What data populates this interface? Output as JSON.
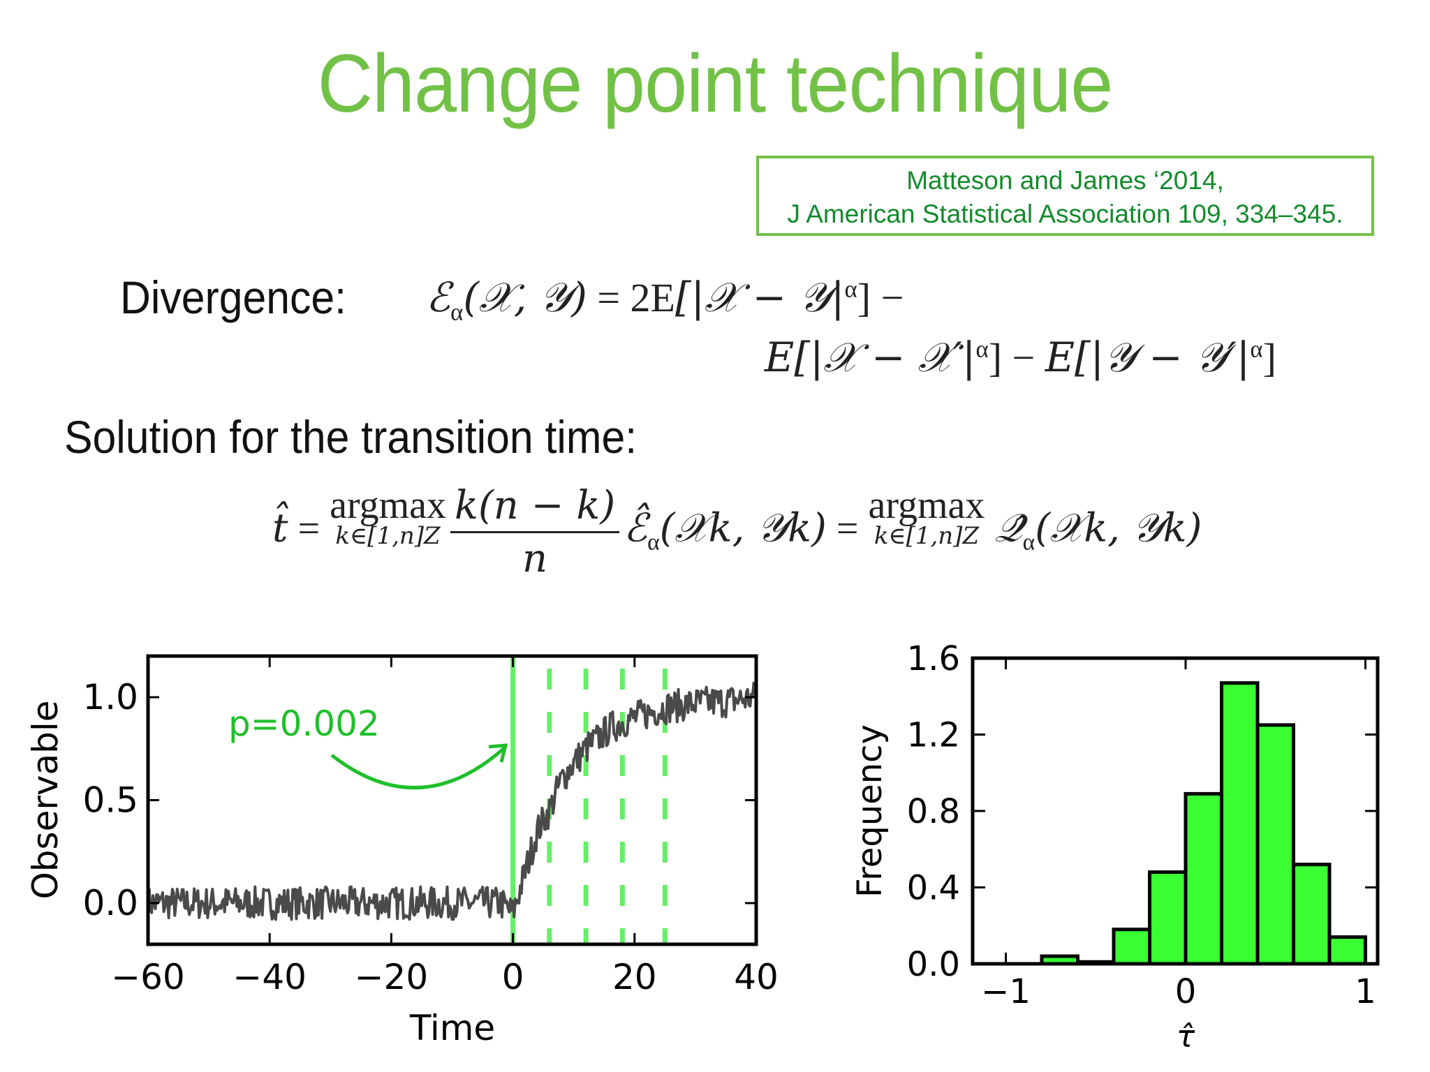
{
  "slide": {
    "title": "Change point technique",
    "title_color": "#72c147",
    "citation": {
      "line1": "Matteson and James ‘2014,",
      "line2": "J American Statistical Association 109, 334–345.",
      "text_color": "#138a2b",
      "border_color": "#72c147"
    },
    "divergence_label": "Divergence:",
    "divergence_formula": {
      "line1": "ℰα(ℳ, 𝒴) = 2E[|𝒳 − 𝒴|^α] −",
      "line2": "E[|𝒳 − 𝒳′|^α] − E[|𝒴 − 𝒴′|^α]",
      "lhs": "ℰ",
      "sub_alpha": "α",
      "args": "(𝒳, 𝒴)",
      "eq_2E": " = 2E",
      "t1": "[|𝒳 − 𝒴|",
      "sup": "α",
      "close_minus": "] −",
      "t2": "E[|𝒳 − 𝒳′|",
      "t2_close": "] − ",
      "t3": "E[|𝒴 − 𝒴′|",
      "t3_close": "]"
    },
    "solution_label": "Solution for the transition time:",
    "solution_formula": {
      "that": "t̂",
      "eq": " = ",
      "argmax": "argmax",
      "under": "k∈[1,n]Z",
      "num": "k(n − k)",
      "den": "n",
      "ehat": "ℰ̂",
      "alpha": "α",
      "args": "(𝒳k, 𝒴k)",
      "eq2": " = ",
      "argmax2": "argmax",
      "under2": "k∈[1,n]Z",
      "qhat": "𝒬̂",
      "alpha2": "α",
      "args2": "(𝒳k, 𝒴k)"
    }
  },
  "chart_data": [
    {
      "type": "line",
      "title": "",
      "xlabel": "Time",
      "ylabel": "Observable",
      "xlim": [
        -60,
        40
      ],
      "ylim": [
        -0.2,
        1.2
      ],
      "xticks": [
        "−60",
        "−40",
        "−20",
        "0",
        "20",
        "40"
      ],
      "yticks": [
        "0.0",
        "0.5",
        "1.0"
      ],
      "grid": false,
      "series": [
        {
          "name": "observable",
          "color": "#4a4a4a",
          "description": "noisy signal ~0 for t<0, rises sigmoid-like from t=0 to plateau ~0.97 by t≈25",
          "x": [
            -60,
            -50,
            -40,
            -30,
            -20,
            -10,
            -2,
            0,
            2,
            4,
            6,
            8,
            10,
            12,
            14,
            16,
            18,
            20,
            25,
            30,
            35,
            40
          ],
          "y": [
            0.0,
            0.0,
            0.0,
            0.0,
            0.0,
            0.0,
            0.0,
            -0.05,
            0.15,
            0.35,
            0.45,
            0.6,
            0.68,
            0.75,
            0.8,
            0.85,
            0.88,
            0.9,
            0.95,
            0.97,
            0.98,
            1.0
          ]
        }
      ],
      "vlines": [
        {
          "x": 0,
          "style": "solid",
          "color": "#66ee66"
        },
        {
          "x": 6,
          "style": "dashed",
          "color": "#66ee66"
        },
        {
          "x": 12,
          "style": "dashed",
          "color": "#66ee66"
        },
        {
          "x": 18,
          "style": "dashed",
          "color": "#66ee66"
        },
        {
          "x": 25,
          "style": "dashed",
          "color": "#66ee66"
        }
      ],
      "annotations": [
        {
          "text": "p=0.002",
          "color": "#1fbf2a",
          "arrow_to_x": 0,
          "arrow_to_y": 0.78
        }
      ]
    },
    {
      "type": "bar",
      "title": "",
      "xlabel": "τ̂",
      "ylabel": "Frequency",
      "xlim": [
        -1.2,
        1.05
      ],
      "ylim": [
        0.0,
        1.6
      ],
      "xticks": [
        "−1",
        "0",
        "1"
      ],
      "yticks": [
        "0.0",
        "0.4",
        "0.8",
        "1.2",
        "1.6"
      ],
      "grid": false,
      "bar_color": "#39ff33",
      "edge_color": "#000000",
      "bin_edges": [
        -0.8,
        -0.6,
        -0.4,
        -0.2,
        0.0,
        0.2,
        0.4,
        0.6,
        0.8,
        1.0
      ],
      "categories": [
        "-0.8–-0.6",
        "-0.6–-0.4",
        "-0.4–-0.2",
        "-0.2–0.0",
        "0.0–0.2",
        "0.2–0.4",
        "0.4–0.6",
        "0.6–0.8",
        "0.8–1.0"
      ],
      "values": [
        0.04,
        0.01,
        0.18,
        0.48,
        0.89,
        1.47,
        1.25,
        0.52,
        0.14
      ]
    }
  ]
}
